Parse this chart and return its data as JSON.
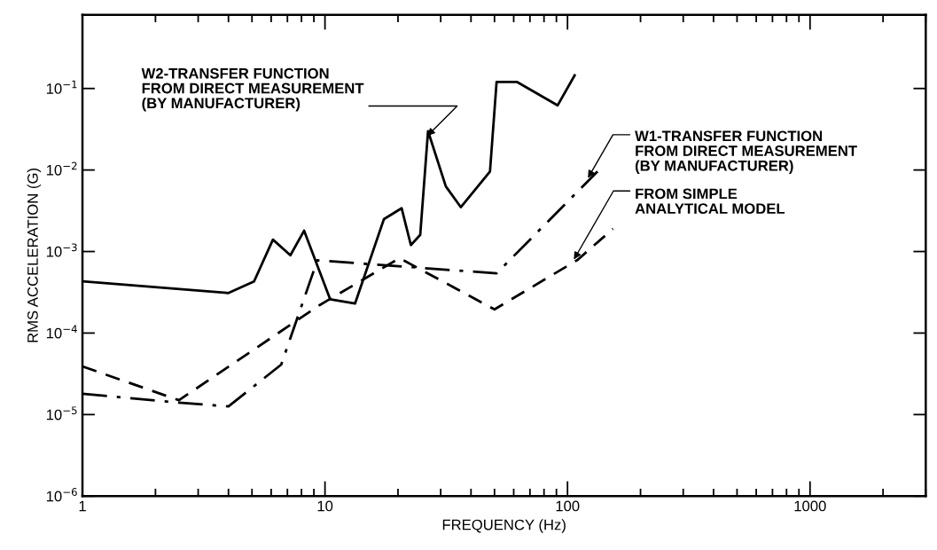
{
  "chart_data": {
    "type": "line",
    "xlabel": "FREQUENCY (Hz)",
    "ylabel": "RMS ACCELERATION (G)",
    "log": "xy",
    "grid": false,
    "legend": false,
    "marker": "none",
    "xlim": [
      1,
      3000
    ],
    "xticks": [
      1,
      10,
      100,
      1000
    ],
    "ylim": [
      1e-06,
      0.8
    ],
    "yticks": [
      {
        "value": 1e-06,
        "label": "10$^{−6}$"
      },
      {
        "value": 1e-05,
        "label": "10$^{−5}$"
      },
      {
        "value": 0.0001,
        "label": "10$^{−4}$"
      },
      {
        "value": 0.001,
        "label": "10$^{−3}$"
      },
      {
        "value": 0.01,
        "label": "10$^{−2}$"
      },
      {
        "value": 0.1,
        "label": "10$^{−1}$"
      }
    ],
    "series": [
      {
        "color": "#000000",
        "line_style": "solid",
        "x": [
          1,
          4.0,
          5.1,
          6.1,
          7.2,
          8.2,
          10.5,
          13.3,
          17.5,
          20.7,
          22.6,
          24.7,
          26.6,
          31.5,
          36.3,
          47.9,
          51,
          62,
          91,
          107
        ],
        "values": [
          0.00043,
          0.00031,
          0.00043,
          0.0014,
          0.0009,
          0.0018,
          0.00026,
          0.00023,
          0.0025,
          0.0034,
          0.0012,
          0.0016,
          0.03,
          0.0063,
          0.0035,
          0.0096,
          0.12,
          0.12,
          0.062,
          0.145
        ]
      },
      {
        "color": "#000000",
        "line_style": "dashdot",
        "x": [
          1,
          2.5,
          4.0,
          6.6,
          9.3,
          51,
          133
        ],
        "values": [
          1.8e-05,
          1.4e-05,
          1.26e-05,
          4.1e-05,
          0.00078,
          0.00054,
          0.0096
        ]
      },
      {
        "color": "#000000",
        "line_style": "dashed",
        "x": [
          1,
          2.5,
          9.5,
          20.3,
          50,
          110,
          154
        ],
        "values": [
          3.9e-05,
          1.5e-05,
          0.00022,
          0.00083,
          0.000195,
          0.00079,
          0.0019
        ]
      }
    ],
    "annotations": [
      {
        "text": "W2-TRANSFER FUNCTION\nFROM DIRECT MEASUREMENT\n(BY MANUFACTURER)",
        "x": 26,
        "y": 0.025
      },
      {
        "text": "W1-TRANSFER FUNCTION\nFROM DIRECT MEASUREMENT\n(BY MANUFACTURER)",
        "x": 120,
        "y": 0.0075
      },
      {
        "text": "FROM SIMPLE\nANALYTICAL MODEL",
        "x": 105,
        "y": 0.00075
      }
    ]
  }
}
